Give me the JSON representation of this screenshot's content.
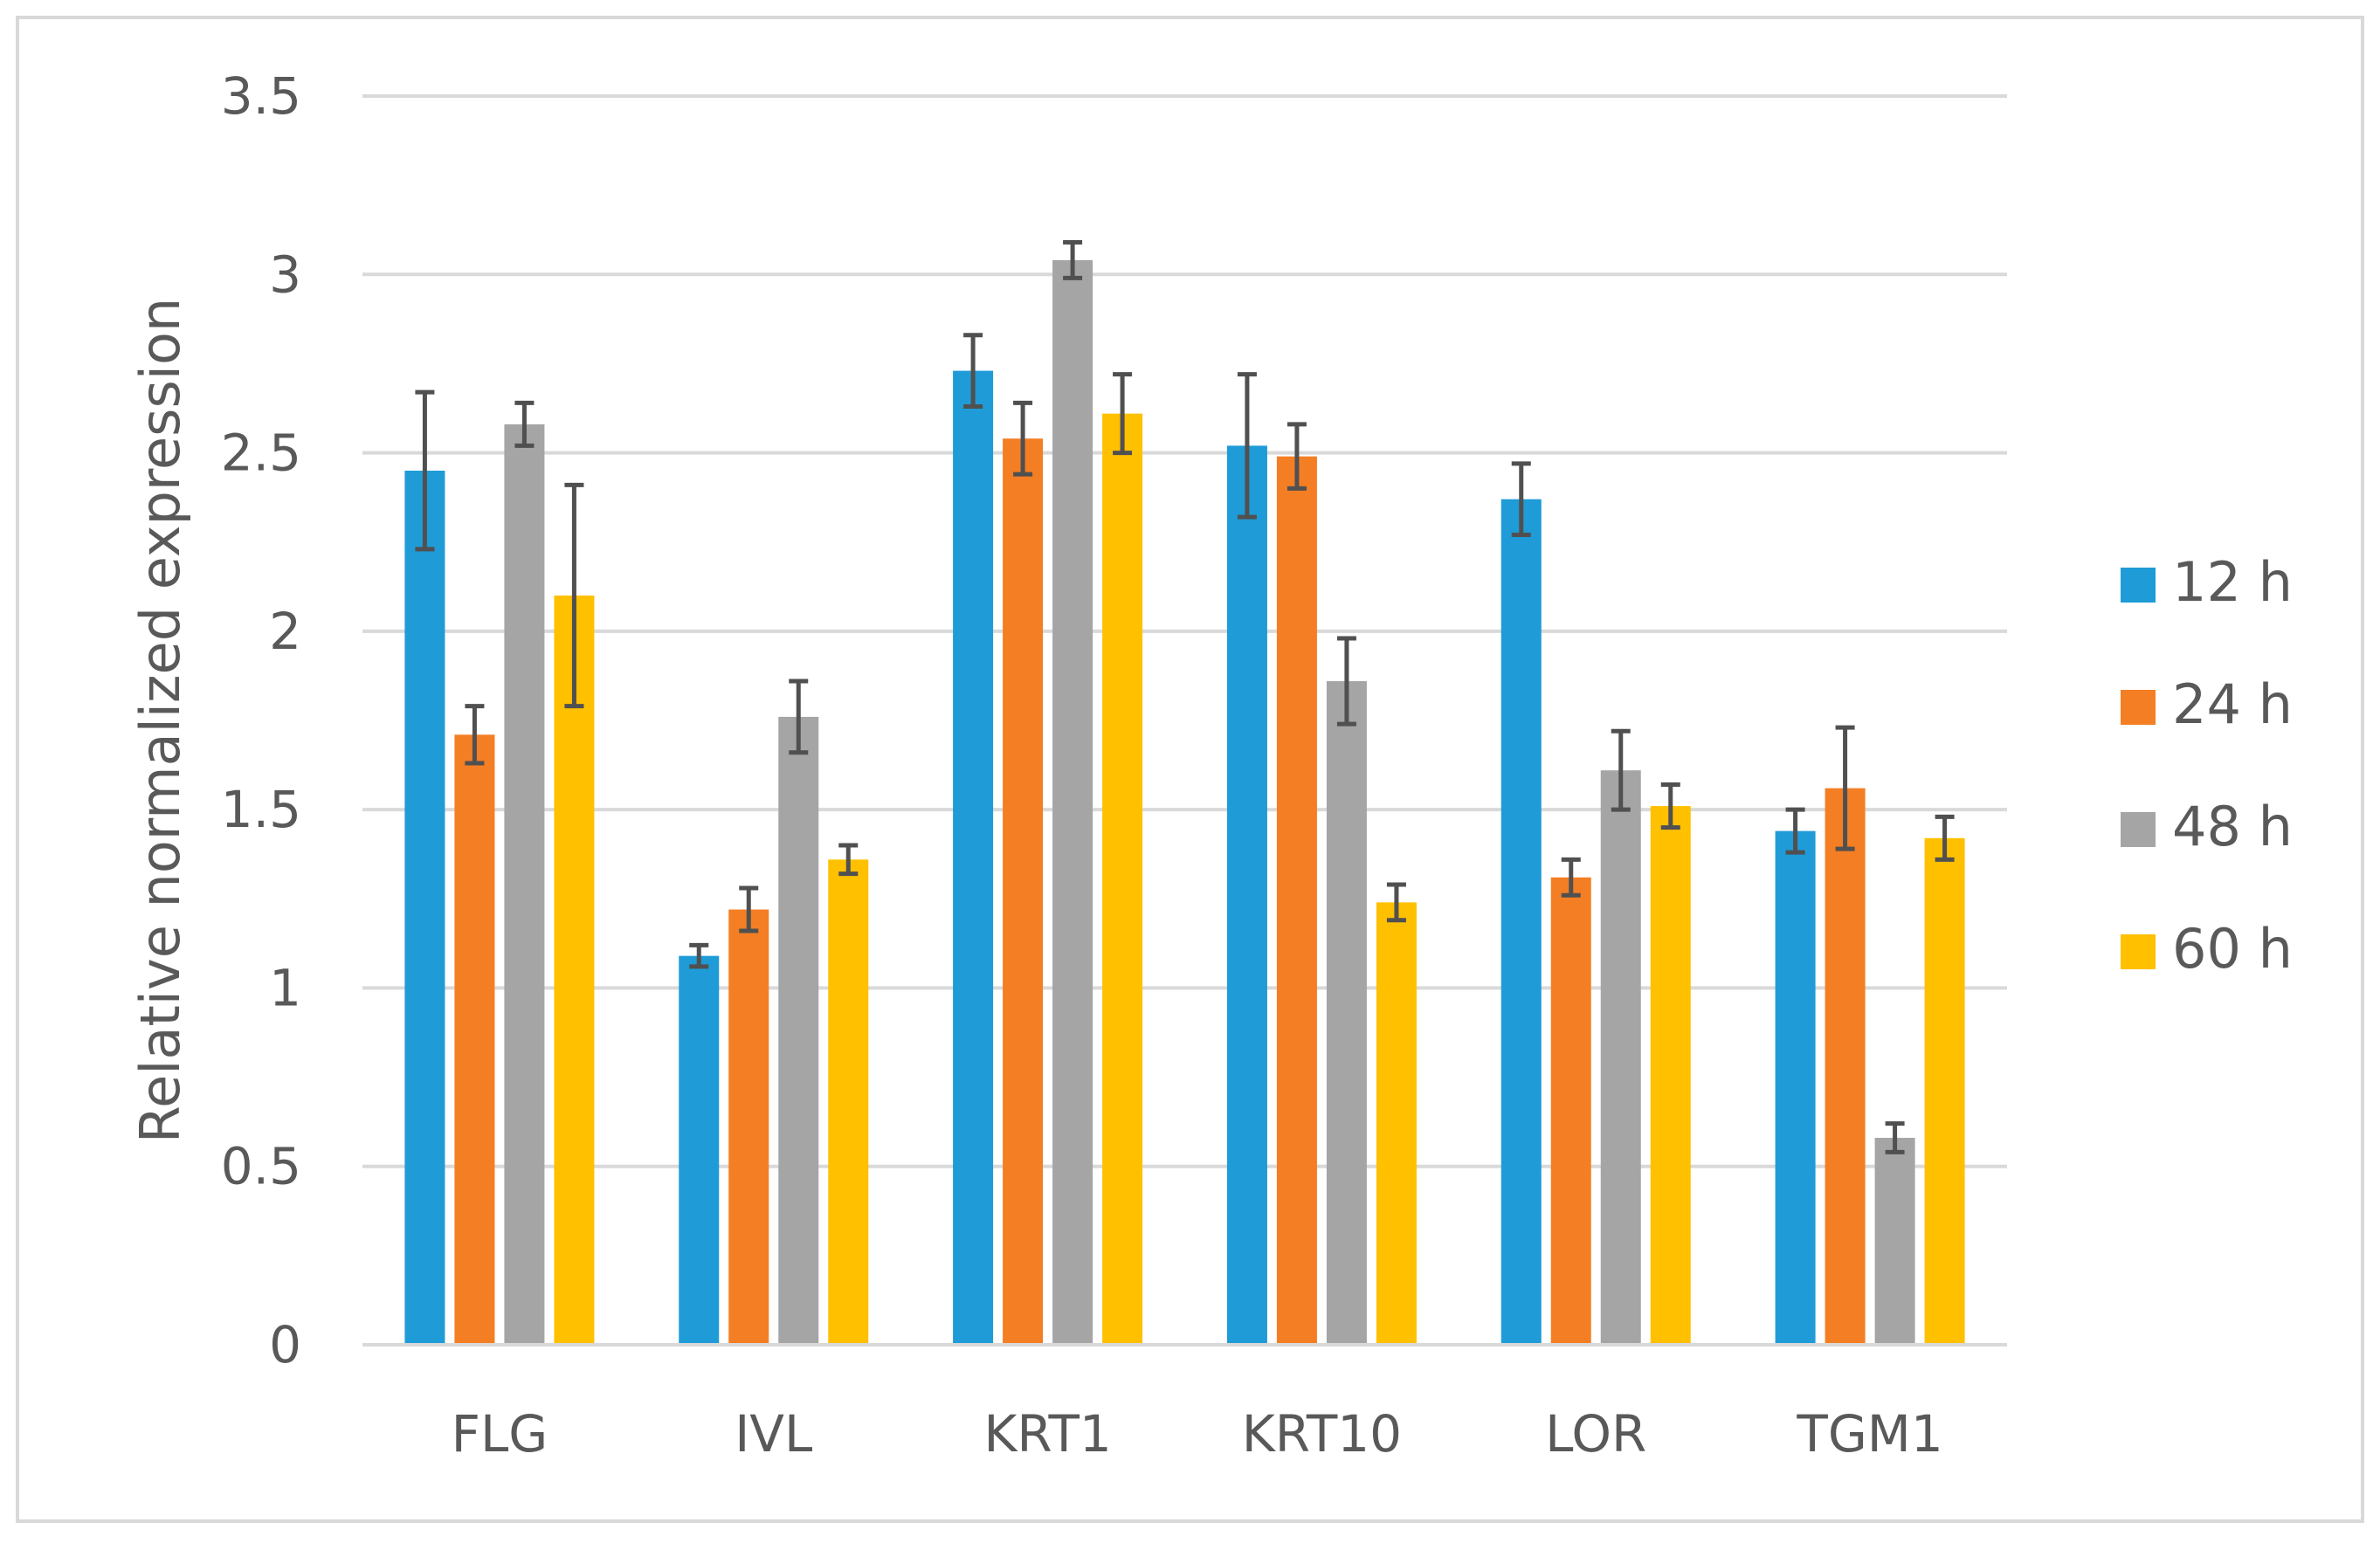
{
  "chart_data": {
    "type": "bar",
    "title": "",
    "xlabel": "",
    "ylabel": "Relative normalized expression",
    "ylim": [
      0,
      3.5
    ],
    "yticks": [
      "0",
      "0.5",
      "1",
      "1.5",
      "2",
      "2.5",
      "3",
      "3.5"
    ],
    "grid": true,
    "legend_position": "right",
    "categories": [
      "FLG",
      "IVL",
      "KRT1",
      "KRT10",
      "LOR",
      "TGM1"
    ],
    "series": [
      {
        "name": "12 h",
        "color": "#1F9BD7",
        "values": [
          2.45,
          1.09,
          2.73,
          2.52,
          2.37,
          1.44
        ],
        "errors": [
          0.22,
          0.03,
          0.1,
          0.2,
          0.1,
          0.06
        ]
      },
      {
        "name": "24 h",
        "color": "#F47E24",
        "values": [
          1.71,
          1.22,
          2.54,
          2.49,
          1.31,
          1.56
        ],
        "errors": [
          0.08,
          0.06,
          0.1,
          0.09,
          0.05,
          0.17
        ]
      },
      {
        "name": "48 h",
        "color": "#A5A5A5",
        "values": [
          2.58,
          1.76,
          3.04,
          1.86,
          1.61,
          0.58
        ],
        "errors": [
          0.06,
          0.1,
          0.05,
          0.12,
          0.11,
          0.04
        ]
      },
      {
        "name": "60 h",
        "color": "#FFC000",
        "values": [
          2.1,
          1.36,
          2.61,
          1.24,
          1.51,
          1.42
        ],
        "errors": [
          0.31,
          0.04,
          0.11,
          0.05,
          0.06,
          0.06
        ]
      }
    ]
  }
}
